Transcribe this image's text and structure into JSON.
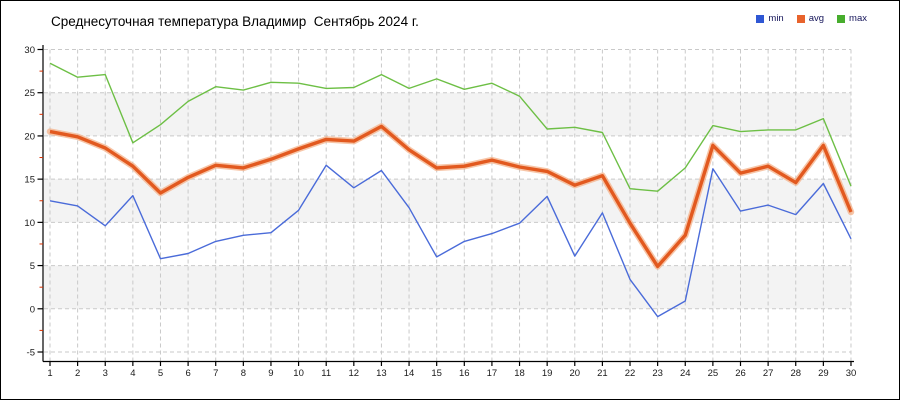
{
  "chart_data": {
    "type": "line",
    "title": "Среднесуточная температура Владимир  Сентябрь 2024 г.",
    "xlabel": "",
    "ylabel": "",
    "x": [
      1,
      2,
      3,
      4,
      5,
      6,
      7,
      8,
      9,
      10,
      11,
      12,
      13,
      14,
      15,
      16,
      17,
      18,
      19,
      20,
      21,
      22,
      23,
      24,
      25,
      26,
      27,
      28,
      29,
      30
    ],
    "yticks": [
      30,
      25,
      20,
      15,
      10,
      5,
      0,
      -5
    ],
    "ylim": [
      -5,
      30
    ],
    "ytick_step": 5,
    "grid": "dashed-both-axes",
    "legend_position": "top-right",
    "shaded_rows": [
      [
        25,
        20
      ],
      [
        15,
        10
      ],
      [
        5,
        0
      ]
    ],
    "band_color": "#f3f3f3",
    "grid_color": "#c9c9c9",
    "axis_color": "#000000",
    "minor_tick_color": "#d93000",
    "series": [
      {
        "name": "min",
        "color": "#2f57d4",
        "line_color": "#4a6bd9",
        "values": [
          12.5,
          11.9,
          9.6,
          13.1,
          5.8,
          6.4,
          7.8,
          8.5,
          8.8,
          11.4,
          16.6,
          14.0,
          16.0,
          11.7,
          6.0,
          7.8,
          8.7,
          9.9,
          13.0,
          6.1,
          11.1,
          3.4,
          -0.9,
          0.9,
          16.2,
          11.3,
          12.0,
          10.9,
          14.5,
          8.1
        ]
      },
      {
        "name": "avg",
        "color": "#e8632c",
        "line_color": "#e2591f",
        "halo_color": "#f4b189",
        "values": [
          20.5,
          19.9,
          18.6,
          16.5,
          13.4,
          15.2,
          16.6,
          16.3,
          17.3,
          18.5,
          19.6,
          19.4,
          21.1,
          18.4,
          16.3,
          16.5,
          17.2,
          16.4,
          15.9,
          14.3,
          15.4,
          9.9,
          4.9,
          8.5,
          18.9,
          15.7,
          16.5,
          14.6,
          18.9,
          11.2
        ]
      },
      {
        "name": "max",
        "color": "#47ad2d",
        "line_color": "#6dbf45",
        "values": [
          28.4,
          26.8,
          27.1,
          19.2,
          21.3,
          24.0,
          25.7,
          25.3,
          26.2,
          26.1,
          25.5,
          25.6,
          27.1,
          25.5,
          26.6,
          25.4,
          26.1,
          24.6,
          20.8,
          21.0,
          20.4,
          13.9,
          13.6,
          16.3,
          21.2,
          20.5,
          20.7,
          20.7,
          22.0,
          14.2
        ]
      }
    ]
  }
}
